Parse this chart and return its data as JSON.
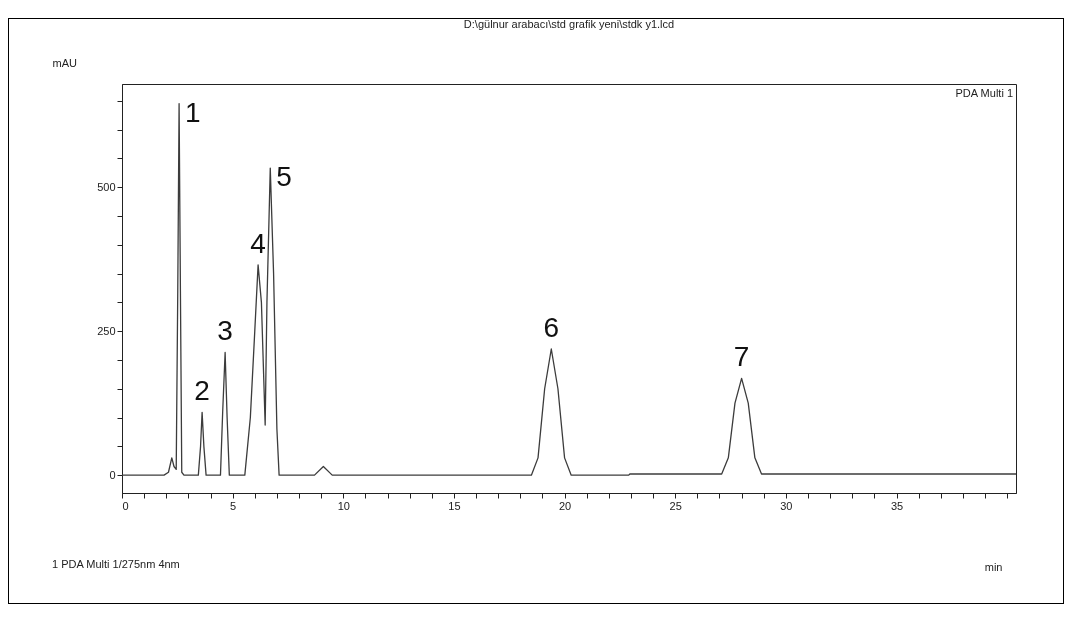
{
  "chart_data": {
    "type": "line",
    "title": "D:\\gülnur arabacı\\std grafik yeni\\stdk y1.lcd",
    "xlabel": "min",
    "ylabel": "mAU",
    "xlim": [
      0,
      40.4
    ],
    "ylim": [
      -31,
      679
    ],
    "xticks": [
      0,
      {
        "value": 1,
        "label": null
      },
      {
        "value": 2,
        "label": null
      },
      {
        "value": 3,
        "label": null
      },
      {
        "value": 4,
        "label": null
      },
      5,
      {
        "value": 6,
        "label": null
      },
      {
        "value": 7,
        "label": null
      },
      {
        "value": 8,
        "label": null
      },
      {
        "value": 9,
        "label": null
      },
      10,
      {
        "value": 11,
        "label": null
      },
      {
        "value": 12,
        "label": null
      },
      {
        "value": 13,
        "label": null
      },
      {
        "value": 14,
        "label": null
      },
      15,
      {
        "value": 16,
        "label": null
      },
      {
        "value": 17,
        "label": null
      },
      {
        "value": 18,
        "label": null
      },
      {
        "value": 19,
        "label": null
      },
      20,
      {
        "value": 21,
        "label": null
      },
      {
        "value": 22,
        "label": null
      },
      {
        "value": 23,
        "label": null
      },
      {
        "value": 24,
        "label": null
      },
      25,
      {
        "value": 26,
        "label": null
      },
      {
        "value": 27,
        "label": null
      },
      {
        "value": 28,
        "label": null
      },
      {
        "value": 29,
        "label": null
      },
      30,
      {
        "value": 31,
        "label": null
      },
      {
        "value": 32,
        "label": null
      },
      {
        "value": 33,
        "label": null
      },
      {
        "value": 34,
        "label": null
      },
      35,
      {
        "value": 36,
        "label": null
      },
      {
        "value": 37,
        "label": null
      },
      {
        "value": 38,
        "label": null
      },
      {
        "value": 39,
        "label": null
      },
      {
        "value": 40,
        "label": null
      }
    ],
    "yticks": [
      0,
      {
        "value": 50,
        "label": null
      },
      {
        "value": 100,
        "label": null
      },
      {
        "value": 150,
        "label": null
      },
      {
        "value": 200,
        "label": null
      },
      250,
      {
        "value": 300,
        "label": null
      },
      {
        "value": 350,
        "label": null
      },
      {
        "value": 400,
        "label": null
      },
      {
        "value": 450,
        "label": null
      },
      500,
      {
        "value": 550,
        "label": null
      },
      {
        "value": 600,
        "label": null
      },
      {
        "value": 650,
        "label": null
      }
    ],
    "grid": false,
    "line_style": "solid",
    "series": [
      {
        "color": "#3c3c3c",
        "x": [
          0,
          1.9,
          2.1,
          2.25,
          2.35,
          2.45,
          2.52,
          2.58,
          2.64,
          2.7,
          2.8,
          3.45,
          3.55,
          3.62,
          3.7,
          3.8,
          4.45,
          4.55,
          4.66,
          4.75,
          4.85,
          5.55,
          5.8,
          6.0,
          6.15,
          6.3,
          6.47,
          6.55,
          6.7,
          6.85,
          7.0,
          7.1,
          8.7,
          9.1,
          9.5,
          18.5,
          18.8,
          19.1,
          19.4,
          19.7,
          20.0,
          20.3,
          22.9,
          22.95,
          27.1,
          27.4,
          27.7,
          28.0,
          28.3,
          28.6,
          28.9,
          40.4
        ],
        "values": [
          0,
          0,
          5,
          30,
          15,
          10,
          320,
          645,
          320,
          5,
          0,
          0,
          50,
          109,
          50,
          0,
          0,
          110,
          213,
          100,
          0,
          0,
          100,
          250,
          365,
          300,
          87,
          300,
          533,
          350,
          80,
          0,
          0,
          15,
          0,
          0,
          30,
          150,
          219,
          150,
          30,
          0,
          0,
          2,
          2,
          30,
          125,
          168,
          125,
          30,
          2,
          2
        ]
      }
    ],
    "annotations": [
      {
        "text": "1",
        "x": 2.58,
        "y": 645
      },
      {
        "text": "2",
        "x": 3.62,
        "y": 109
      },
      {
        "text": "3",
        "x": 4.66,
        "y": 213
      },
      {
        "text": "4",
        "x": 6.15,
        "y": 365
      },
      {
        "text": "5",
        "x": 6.7,
        "y": 533
      },
      {
        "text": "6",
        "x": 19.4,
        "y": 219
      },
      {
        "text": "7",
        "x": 28.0,
        "y": 168
      },
      "PDA Multi 1",
      "1    PDA Multi 1/275nm 4nm"
    ]
  }
}
